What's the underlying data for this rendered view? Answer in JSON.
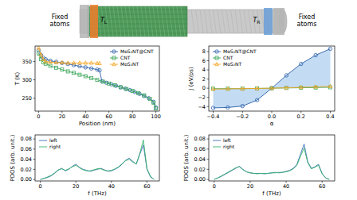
{
  "schematic": {
    "fixed_left": "Fixed atoms",
    "fixed_right": "Fixed atoms",
    "t_left": {
      "text": "T",
      "sub": "L"
    },
    "t_right": {
      "text": "T",
      "sub": "R"
    }
  },
  "chart_data": [
    {
      "type": "line",
      "xlabel": "Position (nm)",
      "ylabel": "T (K)",
      "xlim": [
        -3,
        103
      ],
      "ylim": [
        215,
        392
      ],
      "xticks": [
        0,
        20,
        40,
        60,
        80,
        100
      ],
      "yticks": [
        250,
        300,
        350
      ],
      "legend": "upper right",
      "series": [
        {
          "name": "MoS₂NT@CNT",
          "color": "#2b5fa8",
          "marker": "circle",
          "x": [
            0,
            2,
            4,
            6,
            10,
            15,
            20,
            25,
            30,
            35,
            40,
            45,
            50,
            52,
            54,
            58,
            62,
            66,
            70,
            74,
            78,
            82,
            86,
            90,
            94,
            98,
            100
          ],
          "values": [
            380,
            368,
            360,
            356,
            352,
            349,
            346,
            343,
            340,
            337,
            334,
            331,
            328,
            326,
            296,
            292,
            288,
            284,
            280,
            276,
            272,
            267,
            262,
            256,
            250,
            240,
            225
          ]
        },
        {
          "name": "CNT",
          "color": "#3aa65a",
          "marker": "square",
          "x": [
            0,
            2,
            4,
            6,
            10,
            15,
            20,
            25,
            30,
            35,
            40,
            45,
            50,
            55,
            60,
            65,
            70,
            75,
            80,
            85,
            90,
            95,
            98,
            100
          ],
          "values": [
            372,
            356,
            348,
            344,
            338,
            333,
            328,
            323,
            319,
            314,
            310,
            305,
            300,
            295,
            290,
            285,
            280,
            275,
            270,
            264,
            258,
            248,
            238,
            222
          ]
        },
        {
          "name": "MoS₂NT",
          "color": "#f5a623",
          "marker": "triangle",
          "x": [
            0,
            2,
            4,
            6,
            10,
            15,
            20,
            25,
            30,
            35,
            40,
            45,
            50,
            52
          ],
          "values": [
            387,
            368,
            356,
            350,
            348,
            347,
            347,
            346,
            346,
            346,
            346,
            346,
            345,
            345
          ]
        }
      ]
    },
    {
      "type": "line",
      "xlabel": "α",
      "ylabel": "J (eV/ps)",
      "xlim": [
        -0.43,
        0.43
      ],
      "ylim": [
        -5,
        9.2
      ],
      "xticks": [
        {
          "value": -0.4,
          "label": "−0.4"
        },
        {
          "value": -0.2,
          "label": "−0.2"
        },
        {
          "value": 0,
          "label": "0.0"
        },
        0.2,
        0.4
      ],
      "yticks": [
        {
          "value": -4,
          "label": "−4"
        },
        {
          "value": -2,
          "label": "−2"
        },
        0,
        2,
        4,
        6,
        8
      ],
      "legend": "upper left",
      "series": [
        {
          "name": "MoS₂NT@CNT",
          "color": "#2b5fa8",
          "marker": "circle",
          "x": [
            -0.4,
            -0.3,
            -0.2,
            -0.1,
            0,
            0.1,
            0.2,
            0.3,
            0.4
          ],
          "values": [
            -4.3,
            -4.2,
            -3.9,
            -2.6,
            0,
            2.8,
            5.3,
            7.2,
            8.6
          ]
        },
        {
          "name": "CNT",
          "color": "#3aa65a",
          "marker": "square",
          "x": [
            -0.4,
            -0.3,
            -0.2,
            -0.1,
            0,
            0.1,
            0.2,
            0.3,
            0.4
          ],
          "values": [
            -0.1,
            -0.1,
            -0.1,
            -0.05,
            0,
            0.05,
            0.1,
            0.15,
            0.2
          ]
        },
        {
          "name": "MoS₂NT",
          "color": "#f5a623",
          "marker": "triangle",
          "x": [
            -0.4,
            -0.3,
            -0.2,
            -0.1,
            0,
            0.1,
            0.2,
            0.3,
            0.4
          ],
          "values": [
            -0.2,
            -0.15,
            -0.1,
            -0.05,
            0,
            0.1,
            0.2,
            0.3,
            0.4
          ]
        }
      ]
    },
    {
      "type": "line",
      "xlabel": "f (THz)",
      "ylabel": "PDOS (arb. unit.)",
      "xlim": [
        -3,
        67
      ],
      "ylim": [
        -0.003,
        0.088
      ],
      "xticks": [
        0,
        20,
        40,
        60
      ],
      "yticks": [
        {
          "value": 0,
          "label": "0.00"
        },
        0.02,
        0.04,
        0.06,
        0.08
      ],
      "legend": "upper left",
      "series": [
        {
          "name": "left",
          "color": "#3b6fb6",
          "x": [
            0,
            2,
            4,
            6,
            8,
            10,
            12,
            14,
            16,
            18,
            20,
            22,
            24,
            26,
            28,
            30,
            32,
            34,
            36,
            38,
            40,
            42,
            44,
            46,
            48,
            50,
            52,
            54,
            56,
            58,
            60,
            62,
            64
          ],
          "values": [
            0,
            0.002,
            0.004,
            0.007,
            0.012,
            0.018,
            0.022,
            0.017,
            0.02,
            0.026,
            0.03,
            0.024,
            0.02,
            0.018,
            0.016,
            0.018,
            0.02,
            0.022,
            0.019,
            0.016,
            0.017,
            0.02,
            0.024,
            0.03,
            0.038,
            0.042,
            0.036,
            0.03,
            0.05,
            0.068,
            0.02,
            0.005,
            0
          ]
        },
        {
          "name": "right",
          "color": "#37b36b",
          "x": [
            0,
            2,
            4,
            6,
            8,
            10,
            12,
            14,
            16,
            18,
            20,
            22,
            24,
            26,
            28,
            30,
            32,
            34,
            36,
            38,
            40,
            42,
            44,
            46,
            48,
            50,
            52,
            54,
            56,
            58,
            60,
            62,
            64
          ],
          "values": [
            0,
            0.002,
            0.005,
            0.008,
            0.013,
            0.019,
            0.021,
            0.018,
            0.021,
            0.025,
            0.028,
            0.023,
            0.019,
            0.017,
            0.017,
            0.019,
            0.021,
            0.021,
            0.018,
            0.017,
            0.018,
            0.021,
            0.025,
            0.031,
            0.037,
            0.04,
            0.034,
            0.031,
            0.052,
            0.078,
            0.022,
            0.006,
            0
          ]
        }
      ]
    },
    {
      "type": "line",
      "xlabel": "f (THz)",
      "ylabel": "PDOS (arb. unit.)",
      "xlim": [
        -3,
        67
      ],
      "ylim": [
        -0.003,
        0.088
      ],
      "xticks": [
        0,
        20,
        40,
        60
      ],
      "yticks": [
        {
          "value": 0,
          "label": "0.00"
        },
        0.02,
        0.04,
        0.06,
        0.08
      ],
      "legend": "upper left",
      "series": [
        {
          "name": "left",
          "color": "#3b6fb6",
          "x": [
            0,
            2,
            4,
            6,
            8,
            10,
            12,
            14,
            16,
            18,
            20,
            22,
            24,
            26,
            28,
            30,
            32,
            34,
            36,
            38,
            40,
            42,
            44,
            46,
            48,
            50,
            52,
            54,
            56,
            58,
            60,
            62,
            64
          ],
          "values": [
            0,
            0.003,
            0.006,
            0.01,
            0.014,
            0.018,
            0.022,
            0.026,
            0.02,
            0.015,
            0.013,
            0.012,
            0.012,
            0.012,
            0.011,
            0.012,
            0.013,
            0.014,
            0.013,
            0.014,
            0.016,
            0.018,
            0.022,
            0.03,
            0.05,
            0.07,
            0.035,
            0.022,
            0.025,
            0.03,
            0.012,
            0.003,
            0
          ]
        },
        {
          "name": "right",
          "color": "#37b36b",
          "x": [
            0,
            2,
            4,
            6,
            8,
            10,
            12,
            14,
            16,
            18,
            20,
            22,
            24,
            26,
            28,
            30,
            32,
            34,
            36,
            38,
            40,
            42,
            44,
            46,
            48,
            50,
            52,
            54,
            56,
            58,
            60,
            62,
            64
          ],
          "values": [
            0,
            0.003,
            0.007,
            0.011,
            0.015,
            0.019,
            0.023,
            0.025,
            0.019,
            0.015,
            0.013,
            0.012,
            0.011,
            0.012,
            0.012,
            0.012,
            0.013,
            0.013,
            0.014,
            0.014,
            0.015,
            0.017,
            0.021,
            0.028,
            0.046,
            0.062,
            0.033,
            0.021,
            0.024,
            0.028,
            0.011,
            0.003,
            0
          ]
        }
      ]
    }
  ]
}
